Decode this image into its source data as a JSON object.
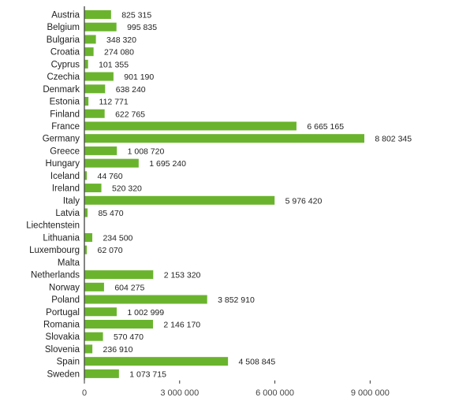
{
  "chart_data": {
    "type": "bar",
    "orientation": "horizontal",
    "title": "",
    "xlabel": "",
    "ylabel": "",
    "bar_color": "#6ab42d",
    "xlim": [
      0,
      11500000
    ],
    "xticks": [
      0,
      3000000,
      6000000,
      9000000
    ],
    "xtick_labels": [
      "0",
      "3 000 000",
      "6 000 000",
      "9 000 000"
    ],
    "grid": false,
    "categories": [
      "Austria",
      "Belgium",
      "Bulgaria",
      "Croatia",
      "Cyprus",
      "Czechia",
      "Denmark",
      "Estonia",
      "Finland",
      "France",
      "Germany",
      "Greece",
      "Hungary",
      "Iceland",
      "Ireland",
      "Italy",
      "Latvia",
      "Liechtenstein",
      "Lithuania",
      "Luxembourg",
      "Malta",
      "Netherlands",
      "Norway",
      "Poland",
      "Portugal",
      "Romania",
      "Slovakia",
      "Slovenia",
      "Spain",
      "Sweden"
    ],
    "values": [
      825315,
      995835,
      348320,
      274080,
      101355,
      901190,
      638240,
      112771,
      622765,
      6665165,
      8802345,
      1008720,
      1695240,
      44760,
      520320,
      5976420,
      85470,
      null,
      234500,
      62070,
      null,
      2153320,
      604275,
      3852910,
      1002999,
      2146170,
      570470,
      236910,
      4508845,
      1073715
    ],
    "value_labels": [
      "825 315",
      "995 835",
      "348 320",
      "274 080",
      "101 355",
      "901 190",
      "638 240",
      "112 771",
      "622 765",
      "6 665 165",
      "8 802 345",
      "1 008 720",
      "1 695 240",
      "44 760",
      "520 320",
      "5 976 420",
      "85 470",
      "",
      "234 500",
      "62 070",
      "",
      "2 153 320",
      "604 275",
      "3 852 910",
      "1 002 999",
      "2 146 170",
      "570 470",
      "236 910",
      "4 508 845",
      "1 073 715"
    ]
  }
}
